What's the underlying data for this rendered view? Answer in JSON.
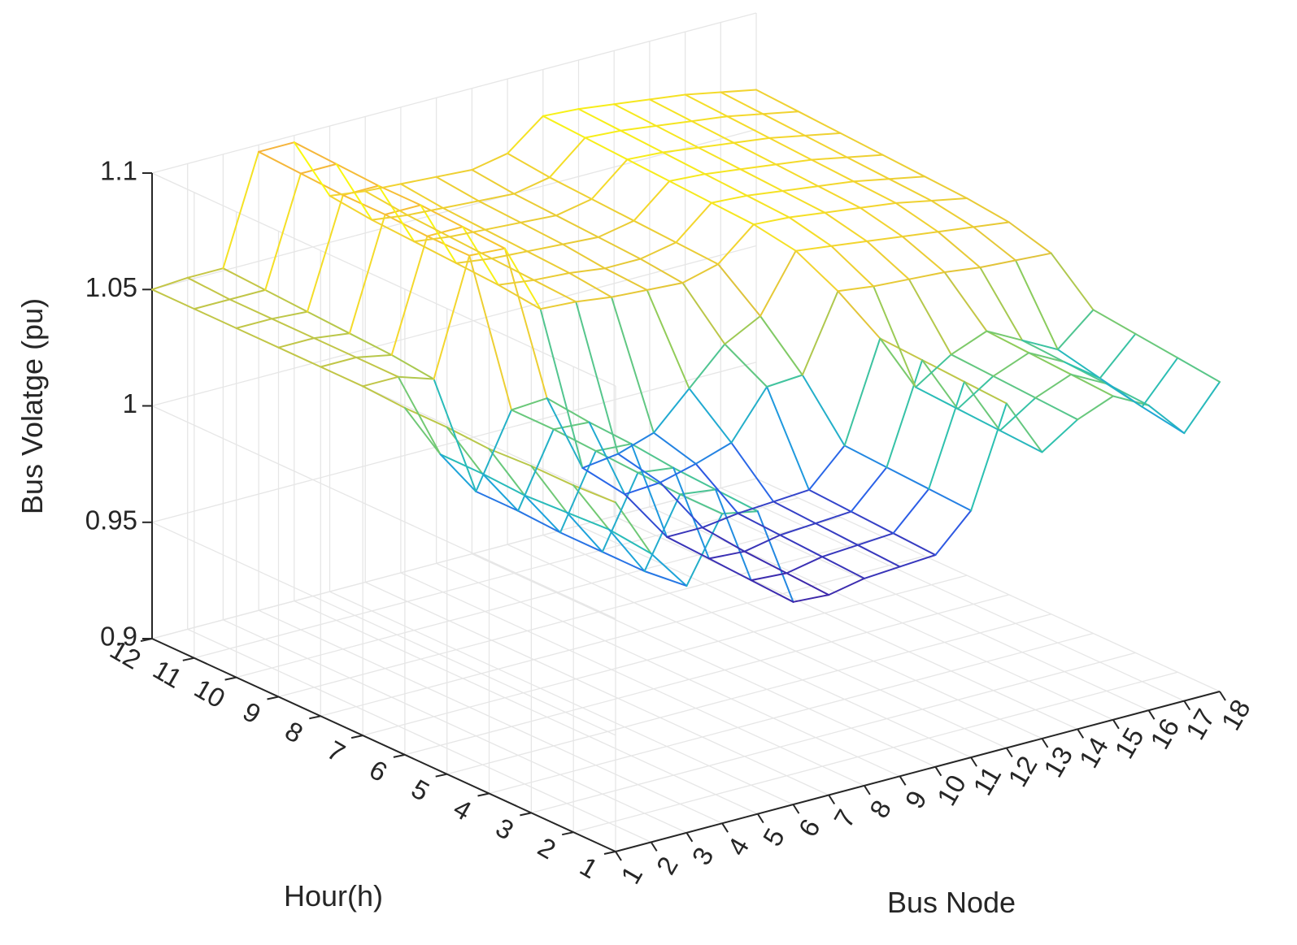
{
  "chart_data": {
    "type": "surface-mesh",
    "xlabel": "Bus Node",
    "ylabel": "Hour(h)",
    "zlabel": "Bus Volatge (pu)",
    "x_ticks": [
      "1",
      "2",
      "3",
      "4",
      "5",
      "6",
      "7",
      "8",
      "9",
      "10",
      "11",
      "12",
      "13",
      "14",
      "15",
      "16",
      "17",
      "18"
    ],
    "y_ticks": [
      "1",
      "2",
      "3",
      "4",
      "5",
      "6",
      "7",
      "8",
      "9",
      "10",
      "11",
      "12"
    ],
    "z_ticks": [
      "0.9",
      "0.95",
      "1",
      "1.05",
      "1.1"
    ],
    "xlim": [
      1,
      18
    ],
    "ylim": [
      1,
      12
    ],
    "zlim": [
      0.9,
      1.1
    ],
    "grid": true,
    "colormap": [
      "#3e26a8",
      "#2c5fe8",
      "#1da1dd",
      "#2cc1b0",
      "#8fcc5a",
      "#e0c33b",
      "#f3d52f",
      "#f9fb0e",
      "#f5b43c"
    ],
    "z": [
      [
        1.05,
        1.024,
        1.006,
        1.033,
        1.03,
        0.987,
        0.986,
        0.989,
        0.99,
        0.991,
        1.006,
        1.048,
        1.023,
        1.033,
        1.039,
        1.031,
        1.015,
        1.033
      ],
      [
        1.049,
        1.026,
        1.004,
        1.033,
        1.031,
        0.988,
        0.987,
        0.99,
        0.991,
        0.992,
        1.007,
        1.049,
        1.024,
        1.034,
        1.04,
        1.032,
        1.018,
        1.035
      ],
      [
        1.049,
        1.025,
        1.004,
        1.034,
        1.032,
        0.989,
        0.988,
        0.991,
        0.992,
        0.993,
        1.008,
        1.05,
        1.025,
        1.035,
        1.041,
        1.033,
        1.022,
        1.037
      ],
      [
        1.048,
        1.024,
        1.004,
        1.035,
        1.034,
        0.99,
        0.99,
        0.992,
        0.993,
        0.994,
        1.009,
        1.051,
        1.026,
        1.036,
        1.042,
        1.034,
        1.026,
        1.039
      ],
      [
        1.049,
        1.025,
        1.005,
        1.036,
        1.035,
        1.0,
        1.001,
        1.005,
        1.01,
        1.03,
        1.031,
        1.063,
        1.061,
        1.06,
        1.059,
        1.057,
        1.056,
        1.055
      ],
      [
        1.049,
        1.025,
        1.005,
        1.036,
        1.037,
        1.003,
        1.005,
        1.01,
        1.025,
        1.04,
        1.048,
        1.072,
        1.07,
        1.068,
        1.066,
        1.064,
        1.062,
        1.06
      ],
      [
        1.05,
        1.05,
        1.045,
        1.094,
        1.093,
        1.063,
        1.062,
        1.06,
        1.059,
        1.058,
        1.062,
        1.075,
        1.074,
        1.072,
        1.07,
        1.068,
        1.065,
        1.062
      ],
      [
        1.05,
        1.05,
        1.047,
        1.094,
        1.094,
        1.065,
        1.063,
        1.062,
        1.06,
        1.06,
        1.063,
        1.076,
        1.075,
        1.073,
        1.071,
        1.069,
        1.066,
        1.063
      ],
      [
        1.05,
        1.05,
        1.048,
        1.095,
        1.095,
        1.066,
        1.064,
        1.063,
        1.062,
        1.061,
        1.064,
        1.077,
        1.076,
        1.074,
        1.072,
        1.07,
        1.067,
        1.064
      ],
      [
        1.05,
        1.05,
        1.049,
        1.095,
        1.095,
        1.067,
        1.065,
        1.064,
        1.063,
        1.062,
        1.065,
        1.078,
        1.077,
        1.075,
        1.073,
        1.071,
        1.068,
        1.065
      ],
      [
        1.05,
        1.05,
        1.05,
        1.096,
        1.096,
        1.068,
        1.066,
        1.065,
        1.064,
        1.063,
        1.066,
        1.079,
        1.078,
        1.076,
        1.074,
        1.072,
        1.069,
        1.066
      ],
      [
        1.05,
        1.051,
        1.051,
        1.097,
        1.097,
        1.07,
        1.068,
        1.067,
        1.066,
        1.065,
        1.068,
        1.08,
        1.079,
        1.077,
        1.075,
        1.073,
        1.07,
        1.067
      ]
    ]
  }
}
